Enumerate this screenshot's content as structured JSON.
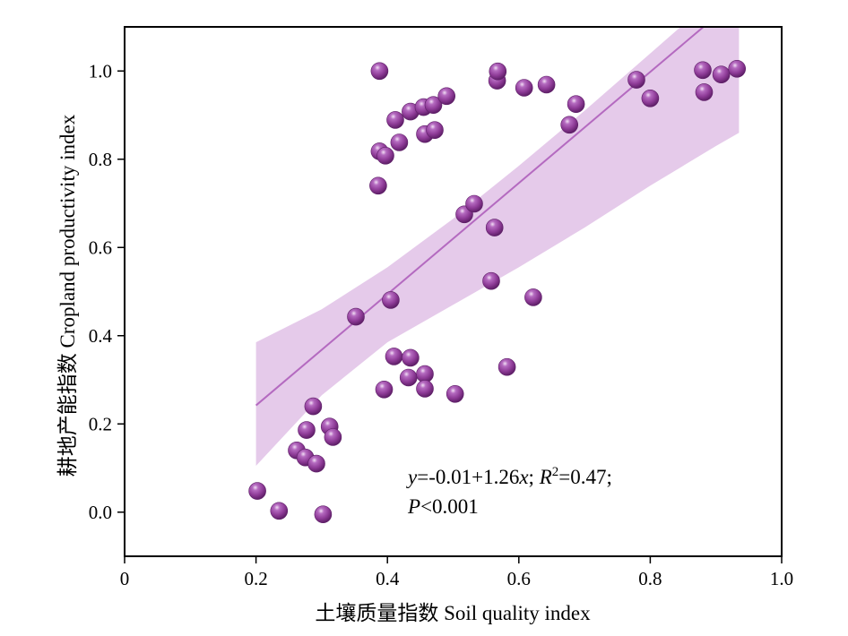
{
  "chart_data": {
    "type": "scatter",
    "xlabel": "土壤质量指数 Soil quality index",
    "ylabel": "耕地产能指数 Cropland productivity index",
    "xlim": [
      0,
      1.0
    ],
    "ylim": [
      -0.1,
      1.1
    ],
    "xticks": [
      0,
      0.2,
      0.4,
      0.6,
      0.8,
      1.0
    ],
    "xtick_labels": [
      "0",
      "0.2",
      "0.4",
      "0.6",
      "0.8",
      "1.0"
    ],
    "yticks": [
      0.0,
      0.2,
      0.4,
      0.6,
      0.8,
      1.0
    ],
    "ytick_labels": [
      "0.0",
      "0.2",
      "0.4",
      "0.6",
      "0.8",
      "1.0"
    ],
    "series": [
      {
        "name": "samples",
        "points": [
          [
            0.202,
            0.048
          ],
          [
            0.235,
            0.003
          ],
          [
            0.302,
            -0.005
          ],
          [
            0.262,
            0.14
          ],
          [
            0.275,
            0.124
          ],
          [
            0.292,
            0.11
          ],
          [
            0.277,
            0.186
          ],
          [
            0.312,
            0.194
          ],
          [
            0.317,
            0.17
          ],
          [
            0.287,
            0.24
          ],
          [
            0.352,
            0.443
          ],
          [
            0.405,
            0.481
          ],
          [
            0.395,
            0.278
          ],
          [
            0.41,
            0.353
          ],
          [
            0.435,
            0.35
          ],
          [
            0.432,
            0.305
          ],
          [
            0.457,
            0.313
          ],
          [
            0.457,
            0.28
          ],
          [
            0.503,
            0.268
          ],
          [
            0.386,
            0.74
          ],
          [
            0.388,
            0.818
          ],
          [
            0.397,
            0.808
          ],
          [
            0.412,
            0.889
          ],
          [
            0.418,
            0.838
          ],
          [
            0.435,
            0.908
          ],
          [
            0.455,
            0.918
          ],
          [
            0.457,
            0.857
          ],
          [
            0.47,
            0.923
          ],
          [
            0.472,
            0.866
          ],
          [
            0.49,
            0.943
          ],
          [
            0.388,
            1.0
          ],
          [
            0.517,
            0.675
          ],
          [
            0.532,
            0.699
          ],
          [
            0.563,
            0.645
          ],
          [
            0.558,
            0.524
          ],
          [
            0.582,
            0.329
          ],
          [
            0.622,
            0.487
          ],
          [
            0.567,
            0.978
          ],
          [
            0.568,
            0.999
          ],
          [
            0.608,
            0.962
          ],
          [
            0.642,
            0.969
          ],
          [
            0.677,
            0.878
          ],
          [
            0.687,
            0.925
          ],
          [
            0.779,
            0.98
          ],
          [
            0.8,
            0.938
          ],
          [
            0.88,
            1.002
          ],
          [
            0.882,
            0.952
          ],
          [
            0.908,
            0.992
          ],
          [
            0.932,
            1.005
          ]
        ]
      }
    ],
    "fit": {
      "intercept": -0.01,
      "slope": 1.26,
      "x_range": [
        0.2,
        0.935
      ],
      "ci_upper": [
        [
          0.2,
          0.385
        ],
        [
          0.3,
          0.46
        ],
        [
          0.4,
          0.555
        ],
        [
          0.5,
          0.665
        ],
        [
          0.6,
          0.785
        ],
        [
          0.7,
          0.91
        ],
        [
          0.8,
          1.04
        ],
        [
          0.9,
          1.17
        ],
        [
          0.935,
          1.215
        ]
      ],
      "ci_lower": [
        [
          0.2,
          0.105
        ],
        [
          0.3,
          0.265
        ],
        [
          0.4,
          0.385
        ],
        [
          0.5,
          0.47
        ],
        [
          0.6,
          0.555
        ],
        [
          0.7,
          0.645
        ],
        [
          0.8,
          0.74
        ],
        [
          0.9,
          0.83
        ],
        [
          0.935,
          0.86
        ]
      ]
    },
    "annotation": {
      "line1_y": "y",
      "line1_eq": "=-0.01+1.26",
      "line1_x": "x",
      "line1_sep": "; ",
      "line1_R": "R",
      "line1_sup": "2",
      "line1_r2": "=0.47;",
      "line2_P": "P",
      "line2_rest": "<0.001"
    },
    "colors": {
      "marker": "#8e3b97",
      "marker_highlight": "#e3bfe8",
      "marker_dark": "#5e1f68",
      "fit_line": "#b46ac0",
      "ci_band": "#dcb8e3"
    }
  }
}
